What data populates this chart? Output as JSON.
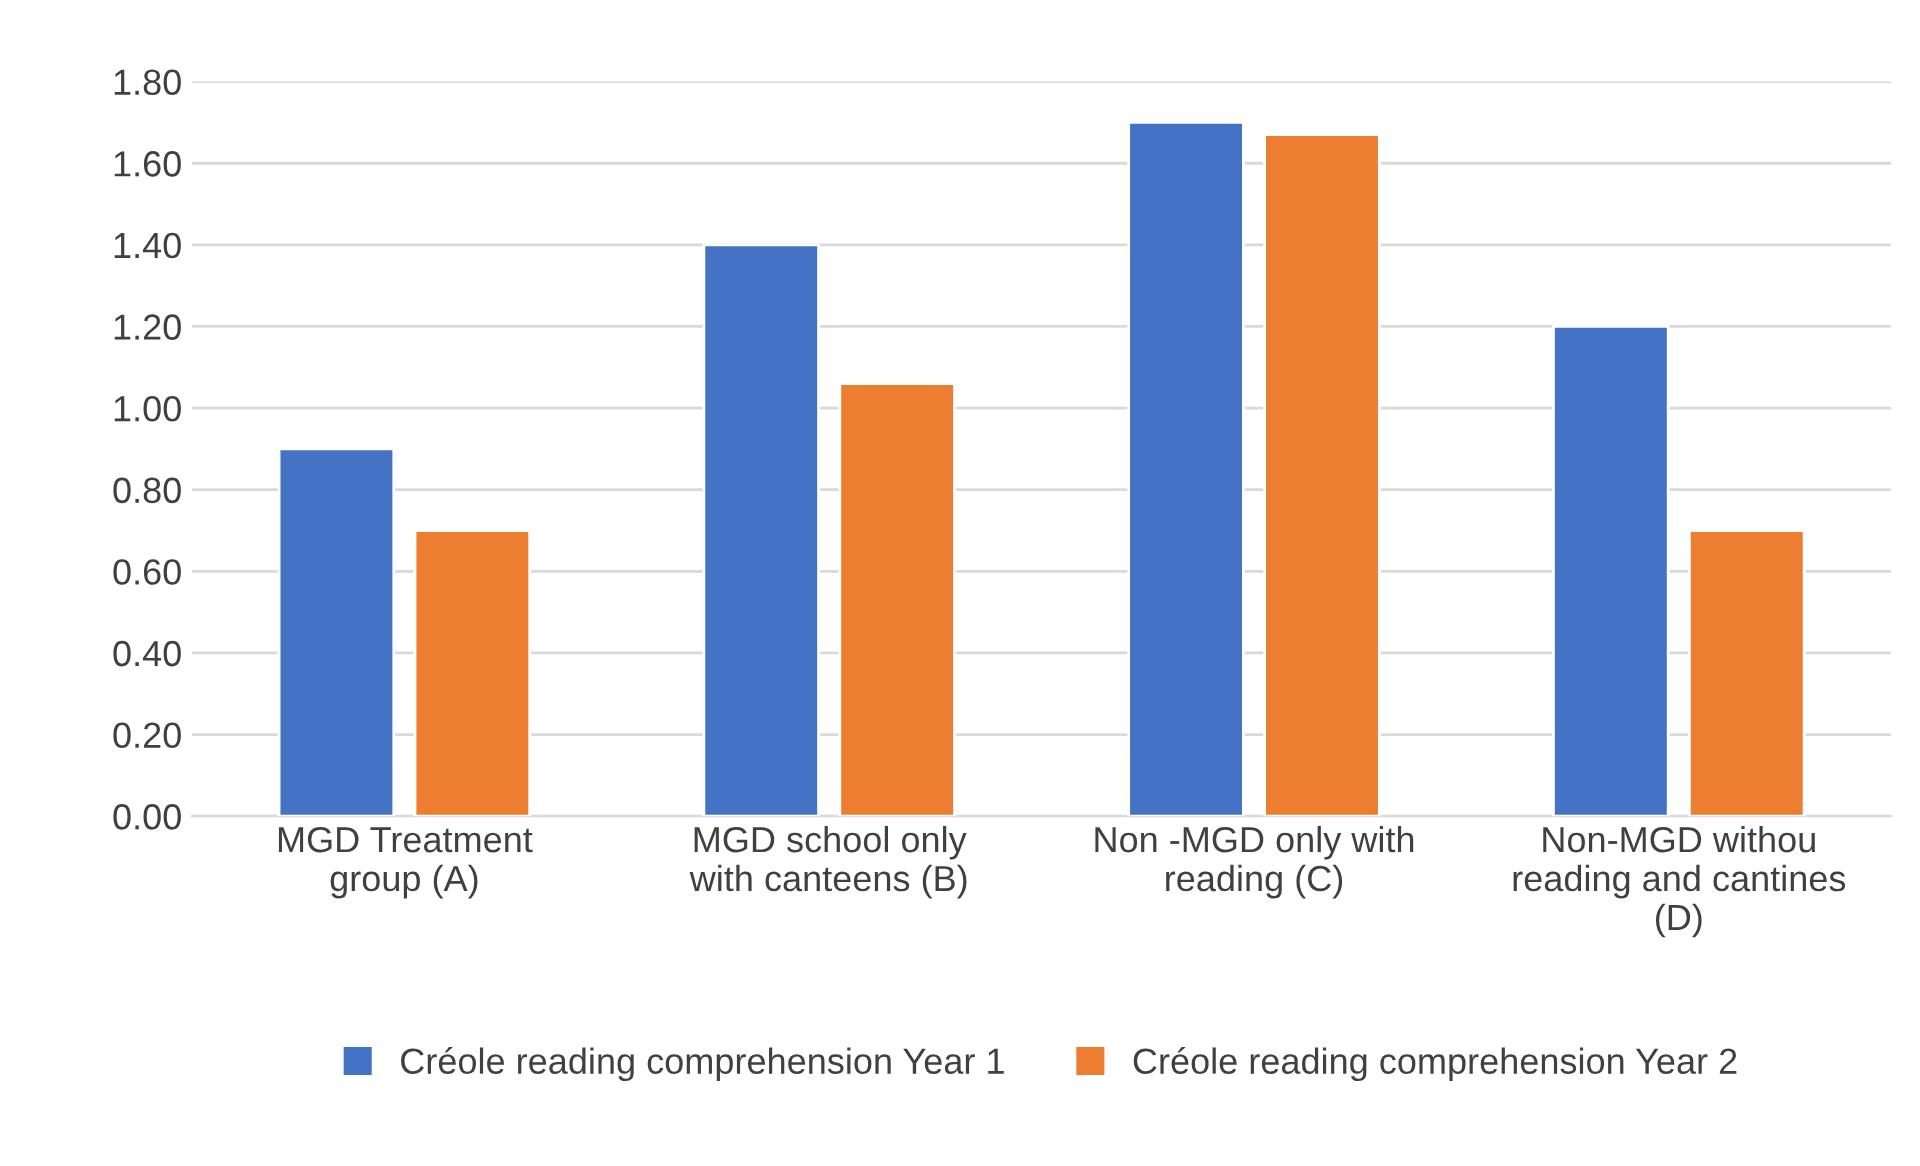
{
  "chart_data": {
    "type": "bar",
    "categories": [
      "MGD Treatment\ngroup (A)",
      "MGD school only\nwith canteens (B)",
      "Non -MGD only with\nreading (C)",
      "Non-MGD withou\nreading and cantines\n(D)"
    ],
    "series": [
      {
        "name": "Créole reading comprehension Year 1",
        "color": "#4472c4",
        "values": [
          0.9,
          1.4,
          1.7,
          1.2
        ]
      },
      {
        "name": "Créole reading comprehension Year 2",
        "color": "#ed7d31",
        "values": [
          0.7,
          1.06,
          1.67,
          0.7
        ]
      }
    ],
    "ylim": [
      0,
      1.8
    ],
    "yticks": [
      {
        "value": 0,
        "label": "0.00"
      },
      {
        "value": 0.2,
        "label": "0.20"
      },
      {
        "value": 0.4,
        "label": "0.40"
      },
      {
        "value": 0.6,
        "label": "0.60"
      },
      {
        "value": 0.8,
        "label": "0.80"
      },
      {
        "value": 1.0,
        "label": "1.00"
      },
      {
        "value": 1.2,
        "label": "1.20"
      },
      {
        "value": 1.4,
        "label": "1.40"
      },
      {
        "value": 1.6,
        "label": "1.60"
      },
      {
        "value": 1.8,
        "label": "1.80"
      }
    ],
    "grid": "y",
    "legend": "bottom"
  }
}
